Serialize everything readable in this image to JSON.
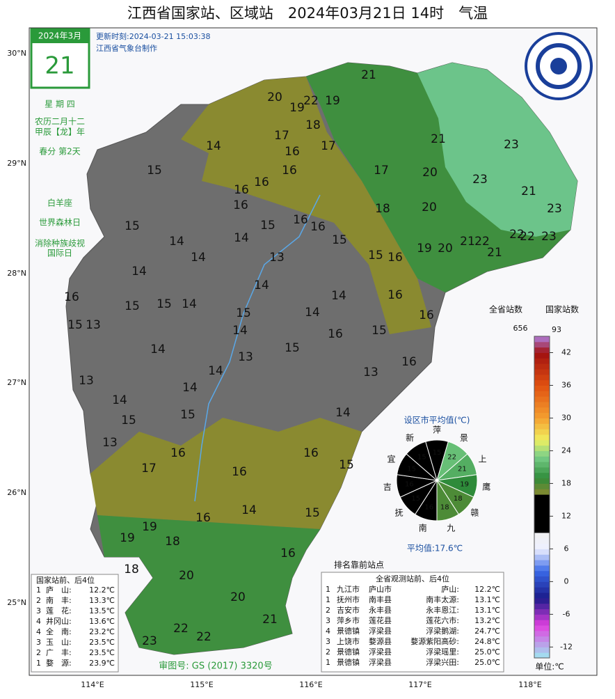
{
  "header": {
    "title": "江西省国家站、区域站　2024年03月21日 14时　气温",
    "update": "更新时刻:2024-03-21 15:03:38",
    "maker": "江西省气象台制作"
  },
  "calendar": {
    "month": "2024年3月",
    "day": "21",
    "lines": [
      "星 期 四",
      "农历二月十二",
      "甲辰【龙】年",
      "春分 第2天",
      "白羊座",
      "世界森林日",
      "消除种族歧视",
      "国际日"
    ]
  },
  "axes": {
    "lat": [
      "30°N",
      "29°N",
      "28°N",
      "27°N",
      "26°N",
      "25°N"
    ],
    "lon": [
      "114°E",
      "115°E",
      "116°E",
      "117°E",
      "118°E"
    ]
  },
  "map": {
    "values": [
      21,
      20,
      19,
      22,
      19,
      18,
      17,
      17,
      14,
      16,
      21,
      23,
      15,
      16,
      17,
      20,
      23,
      21,
      16,
      16,
      16,
      18,
      20,
      23,
      15,
      15,
      16,
      16,
      14,
      15,
      22,
      22,
      21,
      22,
      23,
      14,
      19,
      20,
      21,
      13,
      14,
      15,
      16,
      14,
      14,
      14,
      16,
      16,
      15,
      15,
      14,
      15,
      14,
      15,
      13,
      16,
      15,
      16,
      14,
      14,
      15,
      13,
      14,
      16,
      13,
      13,
      14,
      14,
      15,
      15,
      14,
      13,
      16,
      16,
      17,
      16,
      15,
      14,
      15,
      16,
      19,
      19,
      18,
      16,
      18,
      20,
      20,
      21,
      22,
      22,
      23
    ]
  },
  "pie": {
    "title": "设区市平均值(℃)",
    "cities": [
      "萍",
      "景",
      "上",
      "鹰",
      "赣",
      "九",
      "南",
      "抚",
      "吉",
      "宜",
      "新"
    ],
    "values": [
      15,
      22,
      21,
      19,
      18,
      18,
      16,
      15,
      16,
      15,
      15
    ],
    "average": "平均值:17.6℃"
  },
  "colorbar": {
    "total_label": "全省站数",
    "total": "656",
    "national_label": "国家站数",
    "national": "93",
    "unit": "单位:℃",
    "lim": [
      -14,
      45
    ],
    "ticks": [
      42,
      36,
      30,
      24,
      18,
      12,
      6,
      0,
      -6,
      -12
    ]
  },
  "left_table": {
    "title": "国家站前、后4位",
    "rows": [
      [
        "1",
        "庐　山:",
        "12.2℃"
      ],
      [
        "2",
        "南　丰:",
        "13.3℃"
      ],
      [
        "3",
        "莲　花:",
        "13.5℃"
      ],
      [
        "4",
        "井冈山:",
        "13.6℃"
      ],
      [
        "4",
        "全　南:",
        "23.2℃"
      ],
      [
        "3",
        "玉　山:",
        "23.5℃"
      ],
      [
        "2",
        "广　丰:",
        "23.5℃"
      ],
      [
        "1",
        "婺　源:",
        "23.9℃"
      ]
    ]
  },
  "right_table": {
    "marker": "排名靠前站点",
    "title": "全省观测站前、后4位",
    "rows": [
      [
        "1",
        "九江市",
        "庐山市",
        "庐山:",
        "12.2℃"
      ],
      [
        "1",
        "抚州市",
        "南丰县",
        "南丰太源:",
        "13.1℃"
      ],
      [
        "2",
        "吉安市",
        "永丰县",
        "永丰恩江:",
        "13.1℃"
      ],
      [
        "3",
        "萍乡市",
        "莲花县",
        "莲花六市:",
        "13.2℃"
      ],
      [
        "4",
        "景德镇",
        "浮梁县",
        "浮梁鹅湖:",
        "24.7℃"
      ],
      [
        "3",
        "上饶市",
        "婺源县",
        "婺源紫阳高砂:",
        "24.8℃"
      ],
      [
        "2",
        "景德镇",
        "浮梁县",
        "浮梁瑶里:",
        "25.0℃"
      ],
      [
        "1",
        "景德镇",
        "浮梁县",
        "浮梁兴田:",
        "25.0℃"
      ]
    ]
  },
  "footer": {
    "approval": "审图号: GS (2017) 3320号"
  }
}
